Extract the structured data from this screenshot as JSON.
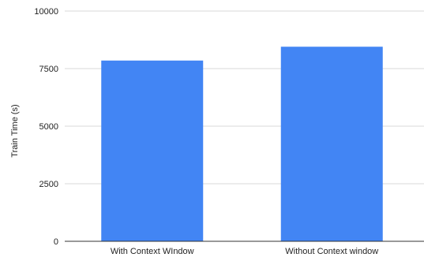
{
  "chart_data": {
    "type": "bar",
    "title": "",
    "xlabel": "",
    "ylabel": "Train Time (s)",
    "categories": [
      "With Context WIndow",
      "Without Context window"
    ],
    "values": [
      7850,
      8450
    ],
    "ylim": [
      0,
      10000
    ],
    "yticks": [
      "0",
      "2500",
      "5000",
      "7500",
      "10000"
    ],
    "grid": true,
    "legend": "none",
    "colors": {
      "bar": "#4285f4",
      "grid": "#d9d9d9",
      "axis": "#333333"
    }
  }
}
